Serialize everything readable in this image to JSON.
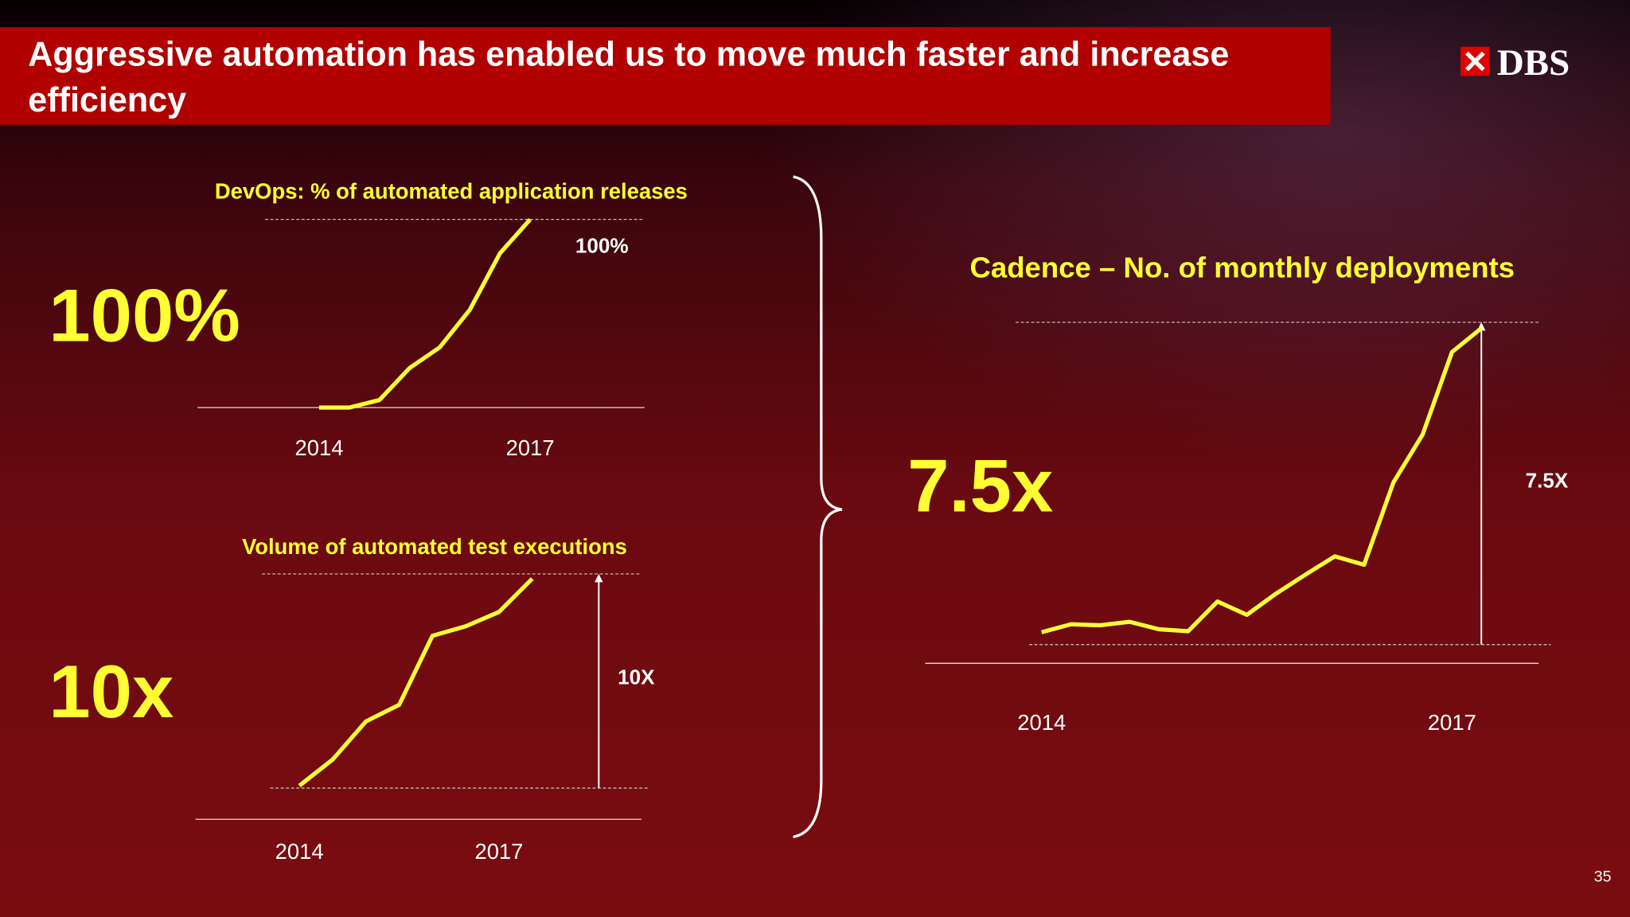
{
  "title": "Aggressive automation has enabled us to move much faster and increase efficiency",
  "logo": "DBS",
  "page_number": "35",
  "chart_data": [
    {
      "type": "line",
      "title": "DevOps: % of automated application releases",
      "headline": "100%",
      "annotation": "100%",
      "categories": [
        "2014",
        null,
        null,
        null,
        null,
        null,
        null,
        "2017"
      ],
      "values": [
        0,
        0,
        4,
        21,
        32,
        52,
        82,
        100
      ],
      "color": "#ffff33",
      "ylim": [
        0,
        100
      ]
    },
    {
      "type": "line",
      "title": "Volume of automated test executions",
      "headline": "10x",
      "annotation": "10X",
      "categories": [
        "2014",
        null,
        null,
        null,
        null,
        null,
        "2017",
        null
      ],
      "values": [
        1.1,
        2.2,
        3.8,
        4.5,
        7.4,
        7.8,
        8.4,
        9.8
      ],
      "color": "#ffff33",
      "ylim": [
        1,
        10
      ]
    },
    {
      "type": "line",
      "title": "Cadence – No. of monthly deployments",
      "headline": "7.5x",
      "annotation": "7.5X",
      "categories": [
        "2014",
        null,
        null,
        null,
        null,
        null,
        null,
        null,
        null,
        null,
        null,
        null,
        null,
        null,
        "2017",
        null
      ],
      "values": [
        1.25,
        1.41,
        1.39,
        1.46,
        1.31,
        1.27,
        1.87,
        1.6,
        2.03,
        2.41,
        2.78,
        2.61,
        4.27,
        5.24,
        6.9,
        7.38
      ],
      "color": "#ffff33",
      "ylim": [
        1,
        7.5
      ]
    }
  ]
}
